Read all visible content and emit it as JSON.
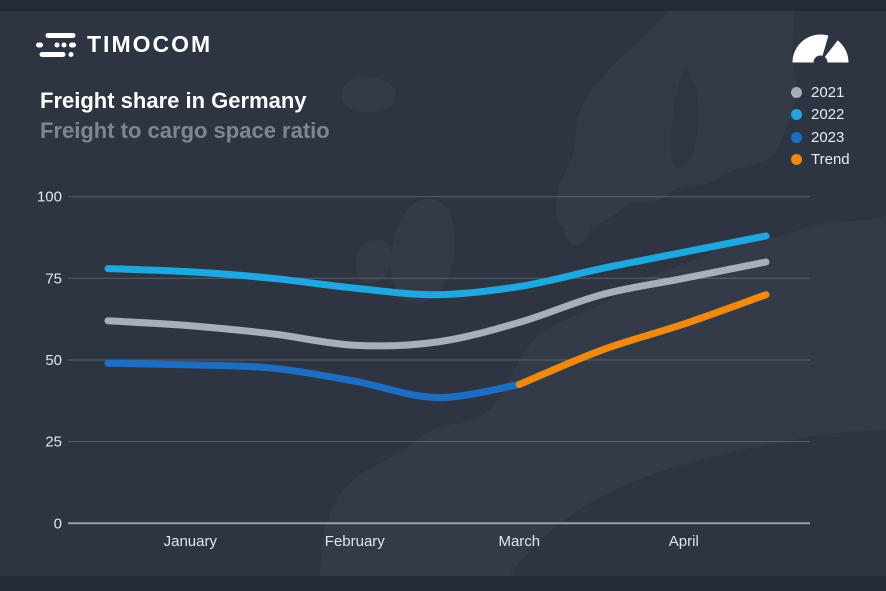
{
  "brand": {
    "logo_text": "TIMOCOM"
  },
  "header": {
    "title": "Freight share in Germany",
    "subtitle": "Freight to cargo space ratio"
  },
  "icons": {
    "logo": "timocom-road-lines-icon",
    "gauge": "barometer-gauge-icon"
  },
  "legend": {
    "position": "top-right",
    "items": [
      {
        "label": "2021",
        "color": "#a8aebb"
      },
      {
        "label": "2022",
        "color": "#1fa7e0"
      },
      {
        "label": "2023",
        "color": "#1c6ec4"
      },
      {
        "label": "Trend",
        "color": "#f0890e"
      }
    ]
  },
  "colors": {
    "background": "#2d3542",
    "edge_bands": "#242b37",
    "map_land": "#39424f",
    "gridline": "#c8cdd7",
    "zero_axis": "#99a1ac",
    "tick_text": "#e2e5eb",
    "title_text": "#ffffff",
    "subtitle_text": "#7e8693"
  },
  "chart_data": {
    "type": "line",
    "title": "Freight share in Germany",
    "subtitle": "Freight to cargo space ratio",
    "xlabel": "",
    "ylabel": "",
    "ylim": [
      0,
      100
    ],
    "y_ticks": [
      0,
      25,
      50,
      75,
      100
    ],
    "grid": "horizontal",
    "legend_position": "top-right",
    "x_unit": "months (0 = start of January, 4 = end of April)",
    "x_range": [
      0,
      4
    ],
    "x_tick_labels": [
      "January",
      "February",
      "March",
      "April"
    ],
    "x_tick_positions": [
      0.5,
      1.5,
      2.5,
      3.5
    ],
    "series": [
      {
        "name": "2021",
        "color": "#a8aebb",
        "x": [
          0,
          0.5,
          1,
          1.5,
          2,
          2.5,
          3,
          3.5,
          4
        ],
        "values": [
          62,
          60.5,
          58,
          54.5,
          55.5,
          61.5,
          70,
          75,
          80
        ]
      },
      {
        "name": "2022",
        "color": "#1fa7e0",
        "x": [
          0,
          0.5,
          1,
          1.5,
          2,
          2.5,
          3,
          3.5,
          4
        ],
        "values": [
          78,
          77,
          75,
          72,
          70,
          72.5,
          78,
          83,
          88
        ]
      },
      {
        "name": "2023",
        "color": "#1c6ec4",
        "x": [
          0,
          0.5,
          1,
          1.5,
          2,
          2.5
        ],
        "values": [
          49,
          48.5,
          47.5,
          43.5,
          38.5,
          42.5
        ]
      },
      {
        "name": "Trend",
        "color": "#f0890e",
        "x": [
          2.5,
          3,
          3.5,
          4
        ],
        "values": [
          42.5,
          53,
          61,
          70
        ]
      }
    ]
  }
}
